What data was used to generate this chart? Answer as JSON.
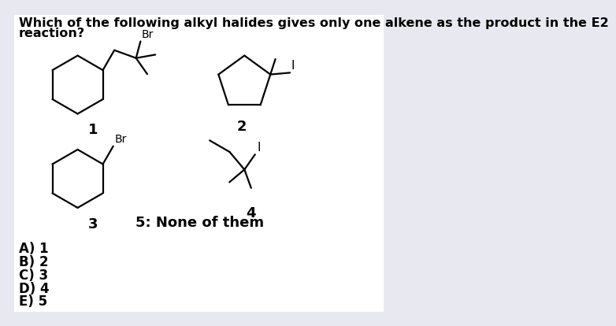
{
  "title_line1": "Which of the following alkyl halides gives only one alkene as the product in the E2",
  "title_line2": "reaction?",
  "background_color": "#e8e8f0",
  "panel_color": "#ffffff",
  "text_color": "#000000",
  "choices": [
    "A) 1",
    "B) 2",
    "C) 3",
    "D) 4",
    "E) 5"
  ],
  "label5": "5: None of them",
  "font_size_title": 11.5,
  "font_size_choices": 12,
  "lw": 1.6
}
